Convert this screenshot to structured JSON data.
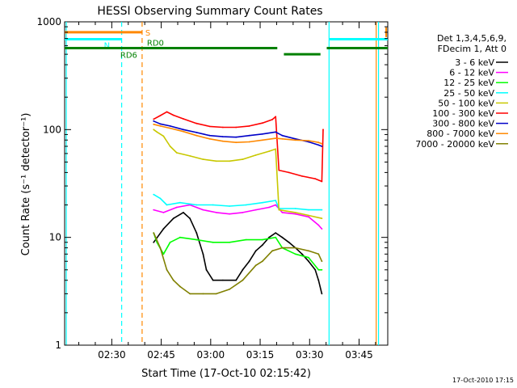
{
  "chart_data": {
    "type": "line",
    "title": "HESSI Observing Summary Count Rates",
    "xlabel": "Start Time (17-Oct-10 02:15:42)",
    "ylabel": "Count Rate (s⁻¹ detector⁻¹)",
    "x_unit": "minutes after 02:15:42",
    "xlim": [
      0,
      98
    ],
    "ylim": [
      1,
      1000
    ],
    "y_scale": "log",
    "x_ticks": [
      {
        "x": 14.3,
        "label": "02:30"
      },
      {
        "x": 29.3,
        "label": "02:45"
      },
      {
        "x": 44.3,
        "label": "03:00"
      },
      {
        "x": 59.3,
        "label": "03:15"
      },
      {
        "x": 74.3,
        "label": "03:30"
      },
      {
        "x": 89.3,
        "label": "03:45"
      }
    ],
    "y_ticks": [
      {
        "y": 1,
        "label": "1"
      },
      {
        "y": 10,
        "label": "10"
      },
      {
        "y": 100,
        "label": "100"
      },
      {
        "y": 1000,
        "label": "1000"
      }
    ],
    "legend": {
      "placement": "right",
      "header": [
        "Det 1,3,4,5,6,9,",
        "FDecim 1, Att 0"
      ]
    },
    "series": [
      {
        "name": "3 - 6 keV",
        "color": "#000000",
        "points": [
          [
            27,
            9
          ],
          [
            30,
            12
          ],
          [
            33,
            15
          ],
          [
            36,
            17
          ],
          [
            38,
            15
          ],
          [
            40,
            11
          ],
          [
            42,
            7
          ],
          [
            43,
            5
          ],
          [
            45,
            4
          ],
          [
            48,
            4
          ],
          [
            52,
            4
          ],
          [
            54,
            5
          ],
          [
            56,
            6
          ],
          [
            58,
            7.5
          ],
          [
            60,
            8.5
          ],
          [
            62,
            10
          ],
          [
            64,
            11
          ],
          [
            66,
            10
          ],
          [
            68,
            9
          ],
          [
            70,
            8
          ],
          [
            72,
            7
          ],
          [
            74,
            6
          ],
          [
            76,
            5
          ],
          [
            77,
            4
          ],
          [
            78,
            3
          ]
        ]
      },
      {
        "name": "6 - 12 keV",
        "color": "#ff00ff",
        "points": [
          [
            27,
            18
          ],
          [
            30,
            17
          ],
          [
            34,
            19
          ],
          [
            38,
            20
          ],
          [
            42,
            18
          ],
          [
            46,
            17
          ],
          [
            50,
            16.5
          ],
          [
            54,
            17
          ],
          [
            58,
            18
          ],
          [
            62,
            19
          ],
          [
            64,
            20
          ],
          [
            66,
            17
          ],
          [
            70,
            16.5
          ],
          [
            74,
            15.5
          ],
          [
            77,
            13
          ],
          [
            78,
            12
          ]
        ]
      },
      {
        "name": "12 - 25 keV",
        "color": "#00ff00",
        "points": [
          [
            27,
            11
          ],
          [
            28,
            9
          ],
          [
            30,
            7
          ],
          [
            32,
            9
          ],
          [
            35,
            10
          ],
          [
            40,
            9.5
          ],
          [
            45,
            9
          ],
          [
            50,
            9
          ],
          [
            55,
            9.5
          ],
          [
            60,
            9.5
          ],
          [
            64,
            10
          ],
          [
            66,
            8
          ],
          [
            70,
            7
          ],
          [
            74,
            6.5
          ],
          [
            77,
            5
          ],
          [
            78,
            5
          ]
        ]
      },
      {
        "name": "25 - 50 keV",
        "color": "#00ffff",
        "points": [
          [
            27,
            25
          ],
          [
            29,
            23
          ],
          [
            31,
            20
          ],
          [
            35,
            21
          ],
          [
            40,
            20
          ],
          [
            45,
            20
          ],
          [
            50,
            19.5
          ],
          [
            55,
            20
          ],
          [
            60,
            21
          ],
          [
            64,
            22
          ],
          [
            65,
            18.5
          ],
          [
            70,
            18.5
          ],
          [
            74,
            18
          ],
          [
            78,
            18
          ]
        ]
      },
      {
        "name": "50 - 100 keV",
        "color": "#c8c800",
        "points": [
          [
            27,
            100
          ],
          [
            28,
            95
          ],
          [
            30,
            87
          ],
          [
            32,
            70
          ],
          [
            34,
            61
          ],
          [
            38,
            57
          ],
          [
            42,
            53
          ],
          [
            46,
            51
          ],
          [
            50,
            51
          ],
          [
            54,
            53
          ],
          [
            58,
            58
          ],
          [
            62,
            63
          ],
          [
            64,
            66
          ],
          [
            65,
            18
          ],
          [
            70,
            17
          ],
          [
            74,
            16
          ],
          [
            78,
            15
          ]
        ]
      },
      {
        "name": "100 - 300 keV",
        "color": "#ff0000",
        "points": [
          [
            27,
            125
          ],
          [
            29,
            135
          ],
          [
            31,
            146
          ],
          [
            33,
            136
          ],
          [
            36,
            126
          ],
          [
            40,
            114
          ],
          [
            44,
            107
          ],
          [
            48,
            105
          ],
          [
            52,
            105
          ],
          [
            56,
            108
          ],
          [
            60,
            115
          ],
          [
            63,
            124
          ],
          [
            64,
            132
          ],
          [
            65,
            42
          ],
          [
            68,
            40
          ],
          [
            72,
            37
          ],
          [
            76,
            35
          ],
          [
            78,
            33
          ],
          [
            78.4,
            100
          ]
        ]
      },
      {
        "name": "300 - 800 keV",
        "color": "#0000c8",
        "points": [
          [
            27,
            120
          ],
          [
            29,
            113
          ],
          [
            32,
            108
          ],
          [
            36,
            100
          ],
          [
            40,
            94
          ],
          [
            44,
            88
          ],
          [
            48,
            86
          ],
          [
            52,
            85
          ],
          [
            56,
            88
          ],
          [
            60,
            91
          ],
          [
            64,
            95
          ],
          [
            66,
            88
          ],
          [
            70,
            82
          ],
          [
            74,
            77
          ],
          [
            77,
            72
          ],
          [
            78,
            70
          ]
        ]
      },
      {
        "name": "800 - 7000 keV",
        "color": "#ff8800",
        "points": [
          [
            27,
            112
          ],
          [
            29,
            108
          ],
          [
            32,
            103
          ],
          [
            36,
            96
          ],
          [
            40,
            88
          ],
          [
            44,
            82
          ],
          [
            48,
            78
          ],
          [
            52,
            76
          ],
          [
            56,
            77
          ],
          [
            60,
            80
          ],
          [
            64,
            83
          ],
          [
            66,
            82
          ],
          [
            70,
            80
          ],
          [
            74,
            79
          ],
          [
            77,
            76
          ],
          [
            78,
            74
          ]
        ]
      },
      {
        "name": "7000 - 20000 keV",
        "color": "#808000",
        "points": [
          [
            27,
            11
          ],
          [
            29,
            8
          ],
          [
            31,
            5
          ],
          [
            33,
            4
          ],
          [
            35,
            3.5
          ],
          [
            38,
            3
          ],
          [
            42,
            3
          ],
          [
            46,
            3
          ],
          [
            50,
            3.3
          ],
          [
            54,
            4
          ],
          [
            58,
            5.5
          ],
          [
            60,
            6
          ],
          [
            63,
            7.5
          ],
          [
            66,
            8
          ],
          [
            70,
            8
          ],
          [
            74,
            7.5
          ],
          [
            77,
            7
          ],
          [
            78,
            6
          ]
        ]
      }
    ],
    "annotations": [
      {
        "label": "S",
        "color": "#ff8800",
        "x": [
          0,
          23.5
        ],
        "y": 800,
        "end_mark": "#ff8800"
      },
      {
        "label": "N",
        "color": "#00ffff",
        "x": [
          0,
          17.3
        ],
        "y": 690
      },
      {
        "label": "",
        "color": "#00ffff",
        "x": [
          80.2,
          98
        ],
        "y": 690
      },
      {
        "label": "RD0",
        "color": "#008000",
        "x": [
          23.5,
          64.5
        ],
        "y": 570
      },
      {
        "label": "RD6",
        "color": "#008000",
        "x": [
          0,
          23.5
        ],
        "y": 570
      },
      {
        "label": "",
        "color": "#008000",
        "x": [
          66.5,
          77.6
        ],
        "y": 500
      },
      {
        "label": "",
        "color": "#008000",
        "x": [
          79.5,
          98
        ],
        "y": 570
      }
    ],
    "vlines": [
      {
        "x": 17.3,
        "color": "#00ffff",
        "style": "dashed"
      },
      {
        "x": 23.5,
        "color": "#ff8800",
        "style": "dashed"
      },
      {
        "x": 80.2,
        "color": "#00ffff",
        "style": "solid"
      },
      {
        "x": 94.5,
        "color": "#ff8800",
        "style": "solid"
      },
      {
        "x": 95.2,
        "color": "#00ffff",
        "style": "solid"
      },
      {
        "x": 0.5,
        "color": "#00ffff",
        "style": "solid"
      }
    ]
  },
  "footer": {
    "timestamp": "17-Oct-2010 17:15"
  }
}
